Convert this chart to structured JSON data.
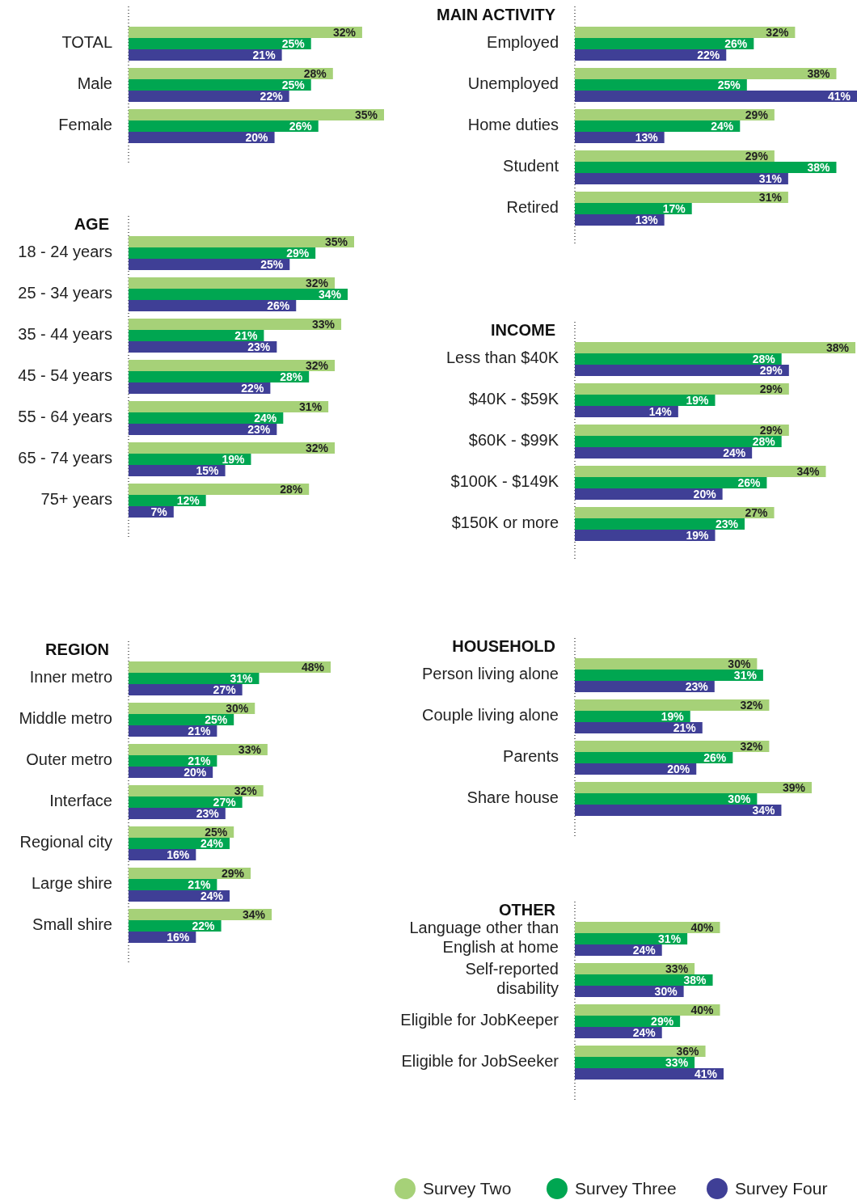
{
  "chart_data": [
    {
      "type": "bar",
      "orientation": "horizontal",
      "categories": [
        "TOTAL",
        "Male",
        "Female"
      ],
      "tick_labels": "y",
      "series": [
        {
          "color": "#a6d178",
          "values": [
            32,
            28,
            35
          ],
          "value_labels": [
            "32%",
            "28%",
            "35%"
          ]
        },
        {
          "color": "#00a651",
          "values": [
            25,
            25,
            26
          ],
          "value_labels": [
            "25%",
            "25%",
            "26%"
          ]
        },
        {
          "color": "#3f3f96",
          "values": [
            21,
            22,
            20
          ],
          "value_labels": [
            "21%",
            "22%",
            "20%"
          ]
        }
      ]
    },
    {
      "type": "bar",
      "orientation": "horizontal",
      "title": "MAIN ACTIVITY",
      "categories": [
        "Employed",
        "Unemployed",
        "Home duties",
        "Student",
        "Retired"
      ],
      "tick_labels": "y",
      "series": [
        {
          "color": "#a6d178",
          "values": [
            32,
            38,
            29,
            29,
            31
          ],
          "value_labels": [
            "32%",
            "38%",
            "29%",
            "29%",
            "31%"
          ]
        },
        {
          "color": "#00a651",
          "values": [
            26,
            25,
            24,
            38,
            17
          ],
          "value_labels": [
            "26%",
            "25%",
            "24%",
            "38%",
            "17%"
          ]
        },
        {
          "color": "#3f3f96",
          "values": [
            22,
            41,
            13,
            31,
            13
          ],
          "value_labels": [
            "22%",
            "41%",
            "13%",
            "31%",
            "13%"
          ]
        }
      ]
    },
    {
      "type": "bar",
      "orientation": "horizontal",
      "title": "AGE",
      "categories": [
        "18 - 24 years",
        "25 - 34 years",
        "35 - 44 years",
        "45 - 54 years",
        "55 - 64 years",
        "65 - 74 years",
        "75+ years"
      ],
      "tick_labels": "y",
      "series": [
        {
          "color": "#a6d178",
          "values": [
            35,
            32,
            33,
            32,
            31,
            32,
            28
          ],
          "value_labels": [
            "35%",
            "32%",
            "33%",
            "32%",
            "31%",
            "32%",
            "28%"
          ]
        },
        {
          "color": "#00a651",
          "values": [
            29,
            34,
            21,
            28,
            24,
            19,
            12
          ],
          "value_labels": [
            "29%",
            "34%",
            "21%",
            "28%",
            "24%",
            "19%",
            "12%"
          ]
        },
        {
          "color": "#3f3f96",
          "values": [
            25,
            26,
            23,
            22,
            23,
            15,
            7
          ],
          "value_labels": [
            "25%",
            "26%",
            "23%",
            "22%",
            "23%",
            "15%",
            "7%"
          ]
        }
      ]
    },
    {
      "type": "bar",
      "orientation": "horizontal",
      "title": "INCOME",
      "categories": [
        "Less than $40K",
        "$40K - $59K",
        "$60K - $99K",
        "$100K - $149K",
        "$150K or more"
      ],
      "tick_labels": "y",
      "series": [
        {
          "color": "#a6d178",
          "values": [
            38,
            29,
            29,
            34,
            27
          ],
          "value_labels": [
            "38%",
            "29%",
            "29%",
            "34%",
            "27%"
          ]
        },
        {
          "color": "#00a651",
          "values": [
            28,
            19,
            28,
            26,
            23
          ],
          "value_labels": [
            "28%",
            "19%",
            "28%",
            "26%",
            "23%"
          ]
        },
        {
          "color": "#3f3f96",
          "values": [
            29,
            14,
            24,
            20,
            19
          ],
          "value_labels": [
            "29%",
            "14%",
            "24%",
            "20%",
            "19%"
          ]
        }
      ]
    },
    {
      "type": "bar",
      "orientation": "horizontal",
      "title": "REGION",
      "categories": [
        "Inner metro",
        "Middle metro",
        "Outer metro",
        "Interface",
        "Regional city",
        "Large shire",
        "Small shire"
      ],
      "tick_labels": "y",
      "series": [
        {
          "color": "#a6d178",
          "values": [
            48,
            30,
            33,
            32,
            25,
            29,
            34
          ],
          "value_labels": [
            "48%",
            "30%",
            "33%",
            "32%",
            "25%",
            "29%",
            "34%"
          ]
        },
        {
          "color": "#00a651",
          "values": [
            31,
            25,
            21,
            27,
            24,
            21,
            22
          ],
          "value_labels": [
            "31%",
            "25%",
            "21%",
            "27%",
            "24%",
            "21%",
            "22%"
          ]
        },
        {
          "color": "#3f3f96",
          "values": [
            27,
            21,
            20,
            23,
            16,
            24,
            16
          ],
          "value_labels": [
            "27%",
            "21%",
            "20%",
            "23%",
            "16%",
            "24%",
            "16%"
          ]
        }
      ]
    },
    {
      "type": "bar",
      "orientation": "horizontal",
      "title": "HOUSEHOLD",
      "categories": [
        "Person living alone",
        "Couple living alone",
        "Parents",
        "Share house"
      ],
      "tick_labels": "y",
      "series": [
        {
          "color": "#a6d178",
          "values": [
            30,
            32,
            32,
            39
          ],
          "value_labels": [
            "30%",
            "32%",
            "32%",
            "39%"
          ]
        },
        {
          "color": "#00a651",
          "values": [
            31,
            19,
            26,
            30
          ],
          "value_labels": [
            "31%",
            "19%",
            "26%",
            "30%"
          ]
        },
        {
          "color": "#3f3f96",
          "values": [
            23,
            21,
            20,
            34
          ],
          "value_labels": [
            "23%",
            "21%",
            "20%",
            "34%"
          ]
        }
      ]
    },
    {
      "type": "bar",
      "orientation": "horizontal",
      "title": "OTHER",
      "categories": [
        "Language other than English at home",
        "Self-reported disability",
        "Eligible for JobKeeper",
        "Eligible for JobSeeker"
      ],
      "tick_labels": "y",
      "legend": "bottom",
      "series": [
        {
          "name": "Survey Two",
          "color": "#a6d178",
          "values": [
            40,
            33,
            40,
            36
          ],
          "value_labels": [
            "40%",
            "33%",
            "40%",
            "36%"
          ]
        },
        {
          "name": "Survey Three",
          "color": "#00a651",
          "values": [
            31,
            38,
            29,
            33
          ],
          "value_labels": [
            "31%",
            "38%",
            "29%",
            "33%"
          ]
        },
        {
          "name": "Survey Four",
          "color": "#3f3f96",
          "values": [
            24,
            30,
            24,
            41
          ],
          "value_labels": [
            "24%",
            "30%",
            "24%",
            "41%"
          ]
        }
      ]
    }
  ]
}
